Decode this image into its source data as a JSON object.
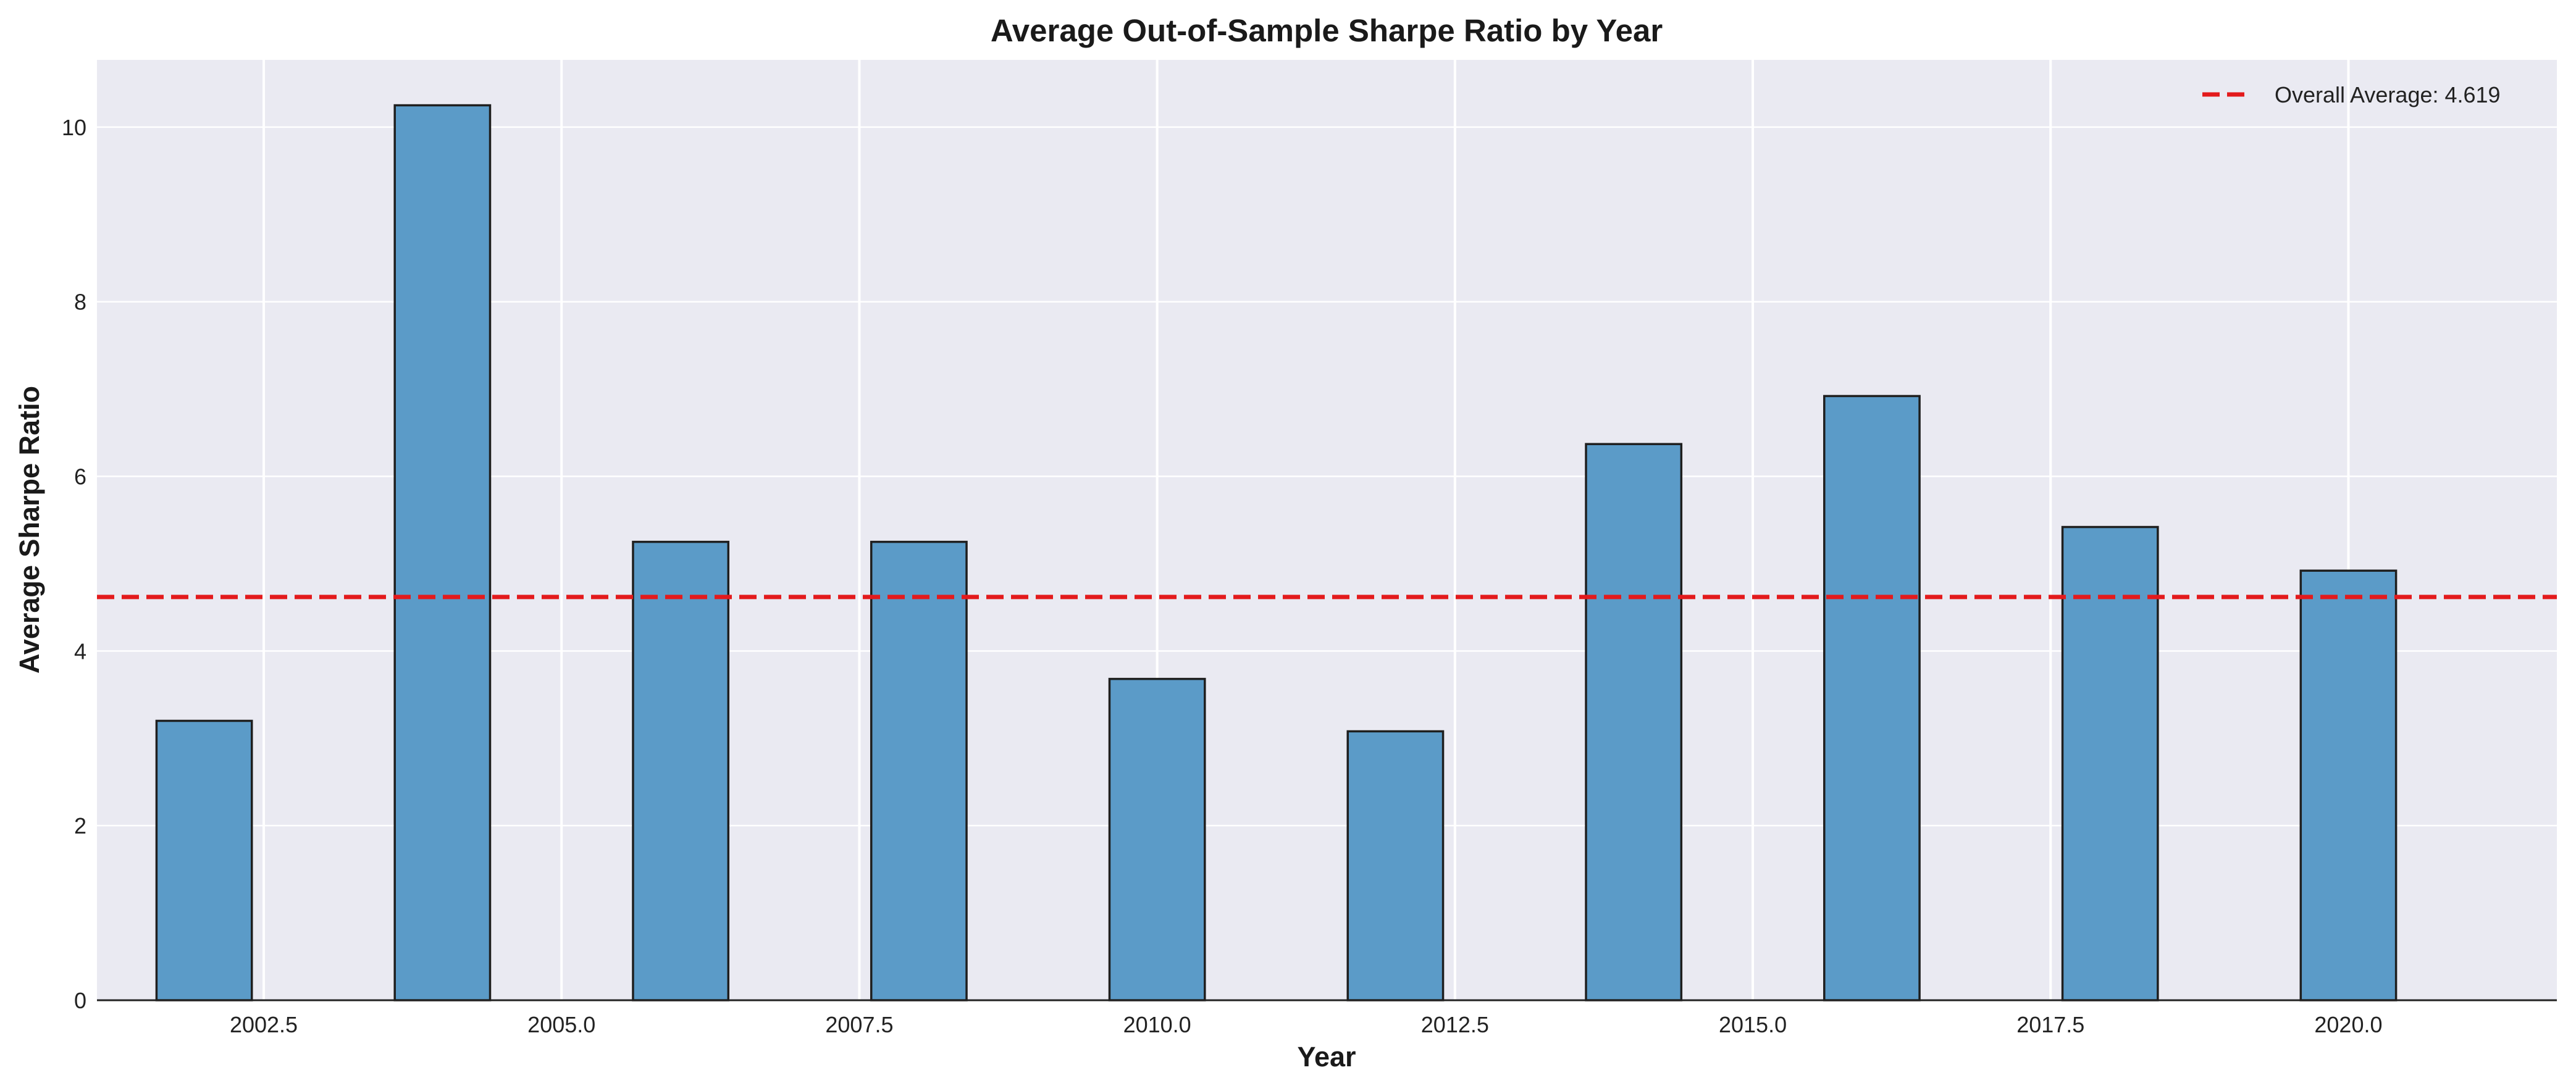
{
  "chart_data": {
    "type": "bar",
    "title": "Average Out-of-Sample Sharpe Ratio by Year",
    "xlabel": "Year",
    "ylabel": "Average Sharpe Ratio",
    "x": [
      2002,
      2004,
      2006,
      2008,
      2010,
      2012,
      2014,
      2016,
      2018,
      2020
    ],
    "values": [
      3.2,
      10.25,
      5.25,
      5.25,
      3.68,
      3.08,
      6.37,
      6.92,
      5.42,
      4.92
    ],
    "bar_width": 0.8,
    "xlim": [
      2001.1,
      2021.75
    ],
    "ylim": [
      0,
      10.77
    ],
    "xticks": [
      2002.5,
      2005.0,
      2007.5,
      2010.0,
      2012.5,
      2015.0,
      2017.5,
      2020.0
    ],
    "xtick_labels": [
      "2002.5",
      "2005.0",
      "2007.5",
      "2010.0",
      "2012.5",
      "2015.0",
      "2017.5",
      "2020.0"
    ],
    "yticks": [
      0,
      2,
      4,
      6,
      8,
      10
    ],
    "ytick_labels": [
      "0",
      "2",
      "4",
      "6",
      "8",
      "10"
    ],
    "reference_line": {
      "y": 4.619,
      "label": "Overall Average: 4.619",
      "style": "dashed"
    },
    "grid": true,
    "legend_position": "top-right",
    "colors": {
      "bar": "#5b9bc8",
      "bar_edge": "#1f1f1f",
      "reference_line": "#e31a1c",
      "plot_background": "#eaeaf2",
      "grid": "#ffffff"
    }
  }
}
